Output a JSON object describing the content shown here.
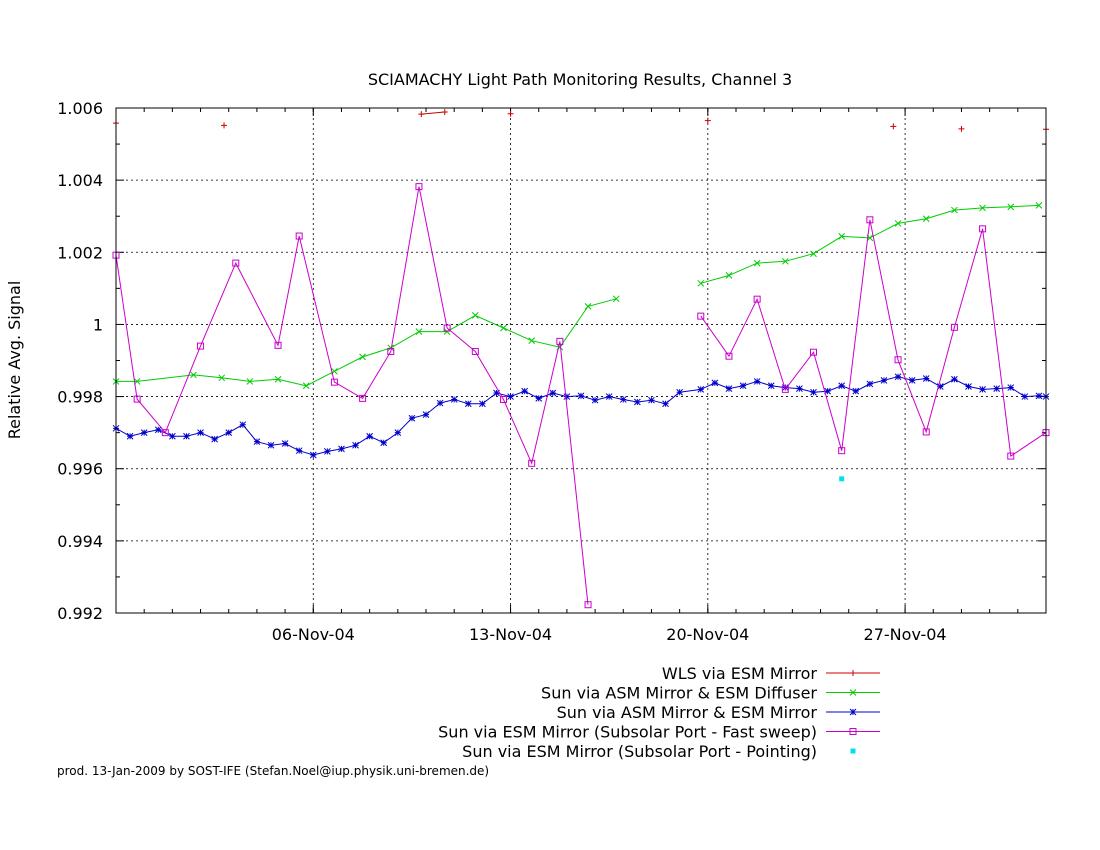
{
  "chart_data": {
    "type": "line",
    "title": "SCIAMACHY Light Path Monitoring Results, Channel 3",
    "ylabel": "Relative Avg. Signal",
    "xlabel": "",
    "xlim": [
      "2004-10-30T00:00",
      "2004-12-02T00:00"
    ],
    "ylim": [
      0.992,
      1.006
    ],
    "xticks": [
      {
        "date": "2004-11-06",
        "label": "06-Nov-04"
      },
      {
        "date": "2004-11-13",
        "label": "13-Nov-04"
      },
      {
        "date": "2004-11-20",
        "label": "20-Nov-04"
      },
      {
        "date": "2004-11-27",
        "label": "27-Nov-04"
      }
    ],
    "yticks": [
      "0.992",
      "0.994",
      "0.996",
      "0.998",
      "1",
      "1.002",
      "1.004",
      "1.006"
    ],
    "grid": true,
    "legend_position": "below",
    "credit": "prod. 13-Jan-2009 by SOST-IFE (Stefan.Noel@iup.physik.uni-bremen.de)",
    "series": [
      {
        "name": "WLS via ESM Mirror",
        "color": "#cc0000",
        "marker": "plus",
        "line": true,
        "points": [
          [
            "2004-10-30T00:00",
            1.00558
          ],
          [
            "2004-11-02T20:00",
            1.00552
          ],
          [
            "2004-11-09T20:00",
            1.00583
          ],
          [
            "2004-11-10T16:00",
            1.00589
          ],
          [
            "2004-11-13T00:00",
            1.00584
          ],
          [
            "2004-11-20T00:00",
            1.00565
          ],
          [
            "2004-11-26T14:00",
            1.00549
          ],
          [
            "2004-11-29T00:00",
            1.00542
          ],
          [
            "2004-12-02T00:00",
            1.00541
          ]
        ]
      },
      {
        "name": "Sun via ASM Mirror & ESM Diffuser",
        "color": "#00cc00",
        "marker": "cross",
        "line": true,
        "points": [
          [
            "2004-10-30T00:00",
            0.99842
          ],
          [
            "2004-10-30T18:00",
            0.99842
          ],
          [
            "2004-11-01T18:00",
            0.9986
          ],
          [
            "2004-11-02T18:00",
            0.99852
          ],
          [
            "2004-11-03T18:00",
            0.99842
          ],
          [
            "2004-11-04T18:00",
            0.99848
          ],
          [
            "2004-11-05T18:00",
            0.9983
          ],
          [
            "2004-11-06T18:00",
            0.9987
          ],
          [
            "2004-11-07T18:00",
            0.9991
          ],
          [
            "2004-11-08T18:00",
            0.99935
          ],
          [
            "2004-11-09T18:00",
            0.9998
          ],
          [
            "2004-11-10T18:00",
            0.9998
          ],
          [
            "2004-11-11T18:00",
            1.00025
          ],
          [
            "2004-11-12T18:00",
            0.9999
          ],
          [
            "2004-11-13T18:00",
            0.99955
          ],
          [
            "2004-11-14T18:00",
            0.99937
          ],
          [
            "2004-11-15T18:00",
            1.0005
          ],
          [
            "2004-11-16T18:00",
            1.00071
          ],
          [
            "2004-11-19T18:00",
            1.00114
          ],
          [
            "2004-11-20T18:00",
            1.00136
          ],
          [
            "2004-11-21T18:00",
            1.0017
          ],
          [
            "2004-11-22T18:00",
            1.00175
          ],
          [
            "2004-11-23T18:00",
            1.00196
          ],
          [
            "2004-11-24T18:00",
            1.00244
          ],
          [
            "2004-11-25T18:00",
            1.0024
          ],
          [
            "2004-11-26T18:00",
            1.0028
          ],
          [
            "2004-11-27T18:00",
            1.00293
          ],
          [
            "2004-11-28T18:00",
            1.00317
          ],
          [
            "2004-11-29T18:00",
            1.00323
          ],
          [
            "2004-11-30T18:00",
            1.00326
          ],
          [
            "2004-12-01T18:00",
            1.0033
          ]
        ]
      },
      {
        "name": "Sun via ASM Mirror & ESM Mirror",
        "color": "#0000cc",
        "marker": "star",
        "line": true,
        "points": [
          [
            "2004-10-30T00:00",
            0.99712
          ],
          [
            "2004-10-30T12:00",
            0.9969
          ],
          [
            "2004-10-31T00:00",
            0.997
          ],
          [
            "2004-10-31T12:00",
            0.99708
          ],
          [
            "2004-11-01T00:00",
            0.9969
          ],
          [
            "2004-11-01T12:00",
            0.9969
          ],
          [
            "2004-11-02T00:00",
            0.997
          ],
          [
            "2004-11-02T12:00",
            0.99682
          ],
          [
            "2004-11-03T00:00",
            0.997
          ],
          [
            "2004-11-03T12:00",
            0.99722
          ],
          [
            "2004-11-04T00:00",
            0.99675
          ],
          [
            "2004-11-04T12:00",
            0.99665
          ],
          [
            "2004-11-05T00:00",
            0.9967
          ],
          [
            "2004-11-05T12:00",
            0.9965
          ],
          [
            "2004-11-06T00:00",
            0.99638
          ],
          [
            "2004-11-06T12:00",
            0.99648
          ],
          [
            "2004-11-07T00:00",
            0.99655
          ],
          [
            "2004-11-07T12:00",
            0.99665
          ],
          [
            "2004-11-08T00:00",
            0.9969
          ],
          [
            "2004-11-08T12:00",
            0.99672
          ],
          [
            "2004-11-09T00:00",
            0.997
          ],
          [
            "2004-11-09T12:00",
            0.9974
          ],
          [
            "2004-11-10T00:00",
            0.9975
          ],
          [
            "2004-11-10T12:00",
            0.99782
          ],
          [
            "2004-11-11T00:00",
            0.99792
          ],
          [
            "2004-11-11T12:00",
            0.9978
          ],
          [
            "2004-11-12T00:00",
            0.9978
          ],
          [
            "2004-11-12T12:00",
            0.9981
          ],
          [
            "2004-11-13T00:00",
            0.998
          ],
          [
            "2004-11-13T12:00",
            0.99815
          ],
          [
            "2004-11-14T00:00",
            0.99795
          ],
          [
            "2004-11-14T12:00",
            0.9981
          ],
          [
            "2004-11-15T00:00",
            0.998
          ],
          [
            "2004-11-15T12:00",
            0.99802
          ],
          [
            "2004-11-16T00:00",
            0.9979
          ],
          [
            "2004-11-16T12:00",
            0.998
          ],
          [
            "2004-11-17T00:00",
            0.99792
          ],
          [
            "2004-11-17T12:00",
            0.99785
          ],
          [
            "2004-11-18T00:00",
            0.9979
          ],
          [
            "2004-11-18T12:00",
            0.9978
          ],
          [
            "2004-11-19T00:00",
            0.99812
          ],
          [
            "2004-11-19T18:00",
            0.9982
          ],
          [
            "2004-11-20T06:00",
            0.99838
          ],
          [
            "2004-11-20T18:00",
            0.99822
          ],
          [
            "2004-11-21T06:00",
            0.9983
          ],
          [
            "2004-11-21T18:00",
            0.99842
          ],
          [
            "2004-11-22T06:00",
            0.9983
          ],
          [
            "2004-11-22T18:00",
            0.99825
          ],
          [
            "2004-11-23T06:00",
            0.99822
          ],
          [
            "2004-11-23T18:00",
            0.99812
          ],
          [
            "2004-11-24T06:00",
            0.99815
          ],
          [
            "2004-11-24T18:00",
            0.9983
          ],
          [
            "2004-11-25T06:00",
            0.99815
          ],
          [
            "2004-11-25T18:00",
            0.99835
          ],
          [
            "2004-11-26T06:00",
            0.99845
          ],
          [
            "2004-11-26T18:00",
            0.99855
          ],
          [
            "2004-11-27T06:00",
            0.99845
          ],
          [
            "2004-11-27T18:00",
            0.9985
          ],
          [
            "2004-11-28T06:00",
            0.99828
          ],
          [
            "2004-11-28T18:00",
            0.99848
          ],
          [
            "2004-11-29T06:00",
            0.99828
          ],
          [
            "2004-11-29T18:00",
            0.9982
          ],
          [
            "2004-11-30T06:00",
            0.99822
          ],
          [
            "2004-11-30T18:00",
            0.99825
          ],
          [
            "2004-12-01T06:00",
            0.998
          ],
          [
            "2004-12-01T18:00",
            0.99802
          ],
          [
            "2004-12-02T00:00",
            0.998
          ]
        ]
      },
      {
        "name": "Sun via ESM Mirror (Subsolar Port - Fast sweep)",
        "color": "#cc00cc",
        "marker": "square",
        "line": true,
        "points": [
          [
            "2004-10-30T00:00",
            1.00192
          ],
          [
            "2004-10-30T18:00",
            0.99793
          ],
          [
            "2004-10-31T18:00",
            0.997
          ],
          [
            "2004-11-02T00:00",
            0.9994
          ],
          [
            "2004-11-03T06:00",
            1.0017
          ],
          [
            "2004-11-04T18:00",
            0.99942
          ],
          [
            "2004-11-05T12:00",
            1.00245
          ],
          [
            "2004-11-06T18:00",
            0.9984
          ],
          [
            "2004-11-07T18:00",
            0.99795
          ],
          [
            "2004-11-08T18:00",
            0.99925
          ],
          [
            "2004-11-09T18:00",
            1.00382
          ],
          [
            "2004-11-10T18:00",
            0.9999
          ],
          [
            "2004-11-11T18:00",
            0.99925
          ],
          [
            "2004-11-12T18:00",
            0.99792
          ],
          [
            "2004-11-13T18:00",
            0.99615
          ],
          [
            "2004-11-14T18:00",
            0.99953
          ],
          [
            "2004-11-15T18:00",
            0.99223
          ],
          [
            "2004-11-19T18:00",
            1.00023
          ],
          [
            "2004-11-20T18:00",
            0.99912
          ],
          [
            "2004-11-21T18:00",
            1.0007
          ],
          [
            "2004-11-22T18:00",
            0.9982
          ],
          [
            "2004-11-23T18:00",
            0.99923
          ],
          [
            "2004-11-24T18:00",
            0.9965
          ],
          [
            "2004-11-25T18:00",
            1.0029
          ],
          [
            "2004-11-26T18:00",
            0.99902
          ],
          [
            "2004-11-27T18:00",
            0.99702
          ],
          [
            "2004-11-28T18:00",
            0.99992
          ],
          [
            "2004-11-29T18:00",
            1.00265
          ],
          [
            "2004-11-30T18:00",
            0.99635
          ],
          [
            "2004-12-02T00:00",
            0.997
          ]
        ]
      },
      {
        "name": "Sun via ESM Mirror (Subsolar Port - Pointing)",
        "color": "#00e0f0",
        "marker": "dot",
        "line": false,
        "points": [
          [
            "2004-11-24T18:00",
            0.99572
          ]
        ]
      }
    ]
  }
}
